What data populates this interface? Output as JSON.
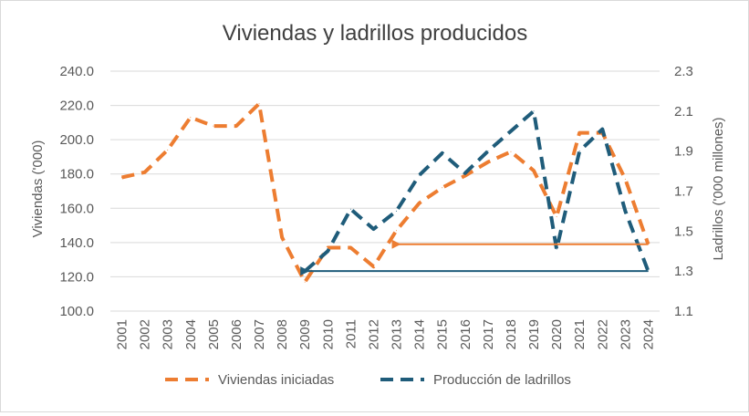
{
  "chart_data": {
    "type": "line",
    "title": "Viviendas y ladrillos producidos",
    "categories": [
      "2001",
      "2002",
      "2003",
      "2004",
      "2005",
      "2006",
      "2007",
      "2008",
      "2009",
      "2010",
      "2011",
      "2012",
      "2013",
      "2014",
      "2015",
      "2016",
      "2017",
      "2018",
      "2019",
      "2020",
      "2021",
      "2022",
      "2023",
      "2024"
    ],
    "y_left": {
      "label": "Viviendas ('000)",
      "ylim": [
        100,
        240
      ],
      "ticks": [
        "100.0",
        "120.0",
        "140.0",
        "160.0",
        "180.0",
        "200.0",
        "220.0",
        "240.0"
      ]
    },
    "y_right": {
      "label": "Ladrillos ('000 millones)",
      "ylim": [
        1.1,
        2.3
      ],
      "ticks": [
        "1.1",
        "1.3",
        "1.5",
        "1.7",
        "1.9",
        "2.1",
        "2.3"
      ]
    },
    "series": [
      {
        "name": "Viviendas iniciadas",
        "axis": "left",
        "color": "#ED7D31",
        "values": [
          178,
          181,
          194,
          213,
          208,
          208,
          221,
          143,
          117,
          137,
          137,
          126,
          147,
          163,
          172,
          179,
          187,
          193,
          182,
          155,
          204,
          204,
          177,
          139
        ]
      },
      {
        "name": "Producción de ladrillos",
        "axis": "right",
        "color": "#1F5C7A",
        "values": [
          null,
          null,
          null,
          null,
          null,
          null,
          null,
          null,
          1.3,
          1.4,
          1.61,
          1.51,
          1.6,
          1.78,
          1.89,
          1.79,
          1.9,
          2.0,
          2.1,
          1.41,
          1.9,
          2.01,
          1.6,
          1.3
        ]
      }
    ],
    "annotations": [
      {
        "type": "arrow",
        "axis": "left",
        "y": 139,
        "from": "2024",
        "to": "2013",
        "color": "#ED7D31"
      },
      {
        "type": "arrow",
        "axis": "right",
        "y": 1.3,
        "from": "2024",
        "to": "2009",
        "color": "#1F5C7A"
      }
    ],
    "legend_position": "bottom",
    "grid": "horizontal"
  }
}
